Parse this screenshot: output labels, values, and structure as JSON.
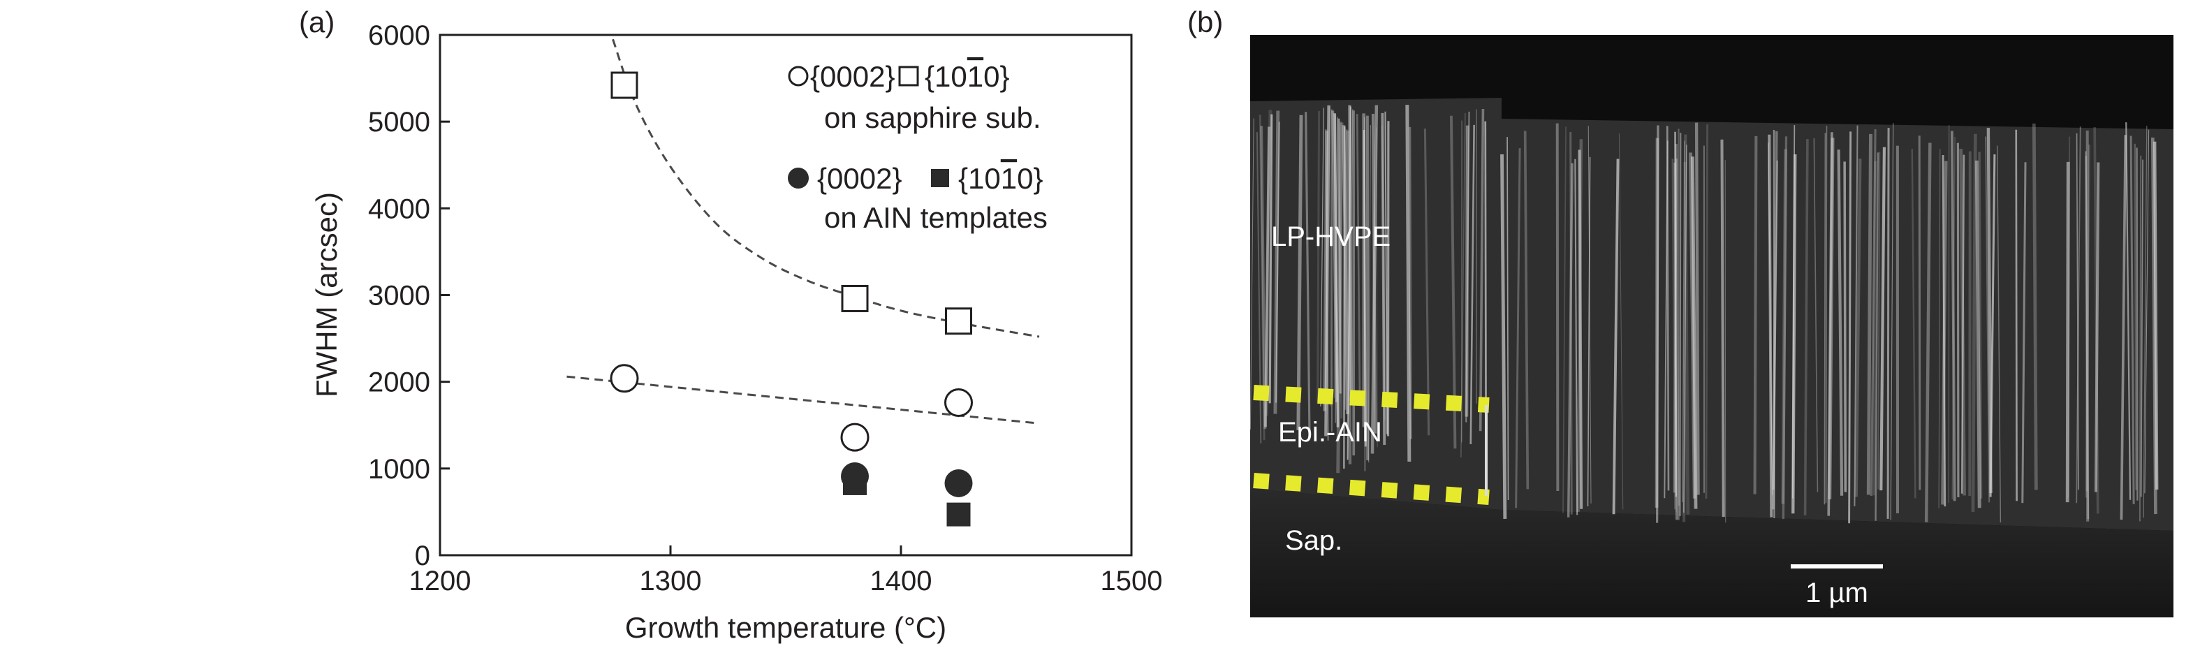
{
  "panel_a": {
    "label": "(a)"
  },
  "panel_b": {
    "label": "(b)",
    "layer_labels": {
      "lp_hvpe": "LP-HVPE",
      "epi_ain": "Epi.-AIN",
      "sapphire": "Sap."
    },
    "scale_bar_label": "1 µm",
    "colors": {
      "background": "#0d0d0d",
      "crystal": "#bdbdbd",
      "dotted_marker": "#e6ea2c",
      "text": "#ffffff"
    }
  },
  "chart_data": {
    "type": "scatter",
    "title": "",
    "xlabel": "Growth temperature (°C)",
    "ylabel": "FWHM (arcsec)",
    "xlim": [
      1200,
      1500
    ],
    "ylim": [
      0,
      6000
    ],
    "xticks": [
      1200,
      1300,
      1400,
      1500
    ],
    "yticks": [
      0,
      1000,
      2000,
      3000,
      4000,
      5000,
      6000
    ],
    "grid": false,
    "legend": {
      "placement": "top-right",
      "groups": [
        {
          "symbols": [
            "open-circle",
            "open-square"
          ],
          "labels": [
            "{0002}",
            "{10",
            "1",
            "0}"
          ],
          "note": "on sapphire sub."
        },
        {
          "symbols": [
            "filled-circle",
            "filled-square"
          ],
          "labels": [
            "{0002}",
            "{10",
            "1",
            "0}"
          ],
          "note": "on AIN templates"
        }
      ]
    },
    "series": [
      {
        "name": "{0002} on sapphire sub.",
        "marker": "open-circle",
        "x": [
          1280,
          1380,
          1425
        ],
        "y": [
          2040,
          1360,
          1760
        ]
      },
      {
        "name": "{10-10} on sapphire sub.",
        "marker": "open-square",
        "x": [
          1280,
          1380,
          1425
        ],
        "y": [
          5420,
          2960,
          2700
        ]
      },
      {
        "name": "{0002} on AIN templates",
        "marker": "filled-circle",
        "x": [
          1380,
          1425
        ],
        "y": [
          910,
          830
        ]
      },
      {
        "name": "{10-10} on AIN templates",
        "marker": "filled-square",
        "x": [
          1380,
          1425
        ],
        "y": [
          830,
          470
        ]
      }
    ],
    "trend_lines": [
      {
        "name": "fit-sapphire-10-10",
        "style": "dashed",
        "x": [
          1275,
          1285,
          1300,
          1320,
          1340,
          1360,
          1380,
          1400,
          1425,
          1460
        ],
        "y": [
          5950,
          5200,
          4480,
          3820,
          3420,
          3160,
          2980,
          2820,
          2680,
          2520
        ]
      },
      {
        "name": "fit-sapphire-0002",
        "style": "dashed",
        "x": [
          1255,
          1460
        ],
        "y": [
          2060,
          1520
        ]
      }
    ],
    "colors": {
      "axis": "#231f20",
      "marker_fill": "#2b2b2b",
      "dashed_line": "#4a4a4a"
    }
  }
}
